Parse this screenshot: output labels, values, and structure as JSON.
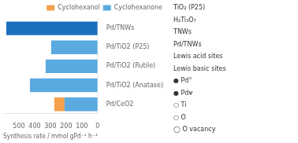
{
  "chart_data": {
    "type": "bar",
    "orientation": "horizontal",
    "stacked": true,
    "categories": [
      "Pd/CeO2",
      "Pd/TiO2 (Anatase)",
      "Pd/TiO2 (Rutile)",
      "Pd/TiO2 (P25)",
      "Pd/TNWs"
    ],
    "series": [
      {
        "name": "Cyclohexanone",
        "colors": [
          "#5aaae0",
          "#5aaae0",
          "#5aaae0",
          "#5aaae0",
          "#1a6fbf"
        ],
        "values": [
          210,
          430,
          330,
          295,
          580
        ]
      },
      {
        "name": "Cyclohexanol",
        "color": "#f5a04a",
        "values": [
          65,
          0,
          0,
          0,
          0
        ]
      }
    ],
    "xlabel": "Synthesis rate / mmol gPd⁻¹ h⁻¹",
    "xlim": [
      600,
      0
    ],
    "xticks": [
      500,
      400,
      300,
      200,
      100,
      0
    ],
    "grid": false,
    "legend": "upper right",
    "annotations": [
      "TiO₂ (P25)",
      "H₂Ti₃O₇",
      "TNWs",
      "Pd/TNWs",
      "Lewis acid sites",
      "Lewis basic sites",
      "● Pd°",
      "● Pdᴪ",
      "○ Ti",
      "○ O",
      "◯ O vacancy"
    ]
  }
}
